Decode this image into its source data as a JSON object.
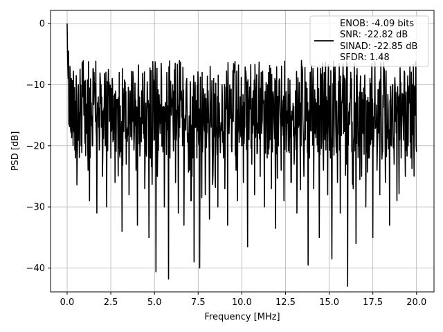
{
  "chart_data": {
    "type": "line",
    "xlabel": "Frequency [MHz]",
    "ylabel": "PSD [dB]",
    "xlim": [
      -0.95,
      21.0
    ],
    "ylim": [
      -43.9,
      2.15
    ],
    "xticks": [
      0.0,
      2.5,
      5.0,
      7.5,
      10.0,
      12.5,
      15.0,
      17.5,
      20.0
    ],
    "xtick_labels": [
      "0.0",
      "2.5",
      "5.0",
      "7.5",
      "10.0",
      "12.5",
      "15.0",
      "17.5",
      "20.0"
    ],
    "yticks": [
      0,
      -10,
      -20,
      -30,
      -40
    ],
    "ytick_labels": [
      "0",
      "−10",
      "−20",
      "−30",
      "−40"
    ],
    "grid": true,
    "legend_placement": "top-right",
    "line_color": "#000000",
    "series": [
      {
        "legend_lines": [
          "ENOB: -4.09 bits",
          "SNR: -22.82 dB",
          "SINAD: -22.85 dB",
          "SFDR: 1.48"
        ],
        "x_range": [
          0.0,
          20.0
        ],
        "points": 1000,
        "values_description_free": true,
        "y": [
          0,
          -4.5,
          -7,
          -9,
          -11,
          -14,
          -22,
          -26.4,
          -10,
          -17,
          -20,
          -12,
          -15,
          -9.3,
          -18,
          -24,
          -29,
          -13,
          -20,
          -8,
          -16,
          -31,
          -12,
          -18,
          -10,
          -25,
          -14,
          -20,
          -30,
          -11,
          -16,
          -22,
          -9,
          -19,
          -26,
          -13,
          -18,
          -8,
          -21,
          -34,
          -15,
          -10,
          -23,
          -17,
          -28,
          -12,
          -19,
          -9,
          -15,
          -24,
          -33,
          -14,
          -20,
          -11,
          -18,
          -27,
          -16,
          -12,
          -35,
          -22,
          -17,
          -10,
          -19,
          -40.6,
          -25,
          -13,
          -18,
          -9,
          -21,
          -30,
          -16,
          -12,
          -41.8,
          -22,
          -15,
          -10,
          -19,
          -26,
          -14,
          -31,
          -17,
          -11,
          -20,
          -33,
          -15,
          -9,
          -18,
          -24,
          -29,
          -12,
          -39,
          -17,
          -22,
          -10,
          -40,
          -16,
          -21,
          -13,
          -28,
          -18,
          -11,
          -32,
          -15,
          -20,
          -9,
          -25,
          -17,
          -30,
          -13,
          -19,
          -10,
          -22,
          -27,
          -14,
          -33,
          -18,
          -11,
          -21,
          -16,
          -8,
          -24,
          -29,
          -15,
          -12,
          -20,
          -26,
          -17,
          -9,
          -36.5,
          -19,
          -14,
          -23,
          -11,
          -28,
          -16,
          -21,
          -10,
          -25,
          -18,
          -13,
          -30,
          -15,
          -22,
          -8,
          -19,
          -27,
          -12,
          -17,
          -33.5,
          -14,
          -20,
          -10,
          -24,
          -16,
          -29,
          -13,
          -21,
          -9,
          -18,
          -26,
          -15,
          -23,
          -11,
          -31,
          -17,
          -14,
          -20,
          -8,
          -25,
          -19,
          -12,
          -39.5,
          -22,
          -16,
          -10,
          -27,
          -18,
          -13,
          -21,
          -35,
          -15,
          -9,
          -24,
          -19,
          -12,
          -28,
          -17,
          -22,
          -38.5,
          -14,
          -10,
          -20,
          -26,
          -16,
          -31,
          -13,
          -18,
          -9,
          -23,
          -43,
          -15,
          -11,
          -21,
          -27,
          -17,
          -36,
          -14,
          -20,
          -10,
          -25,
          -18,
          -12,
          -30,
          -16,
          -22,
          -9,
          -19,
          -35,
          -13,
          -17,
          -24,
          -11,
          -28,
          -15,
          -21,
          -8,
          -26,
          -18,
          -14,
          -33,
          -20,
          -10,
          -23,
          -16,
          -29,
          -12,
          -19,
          -22,
          -15,
          -11,
          -25,
          -17,
          -20,
          -13,
          -22,
          -10,
          -18,
          -15,
          -21
        ]
      }
    ]
  }
}
